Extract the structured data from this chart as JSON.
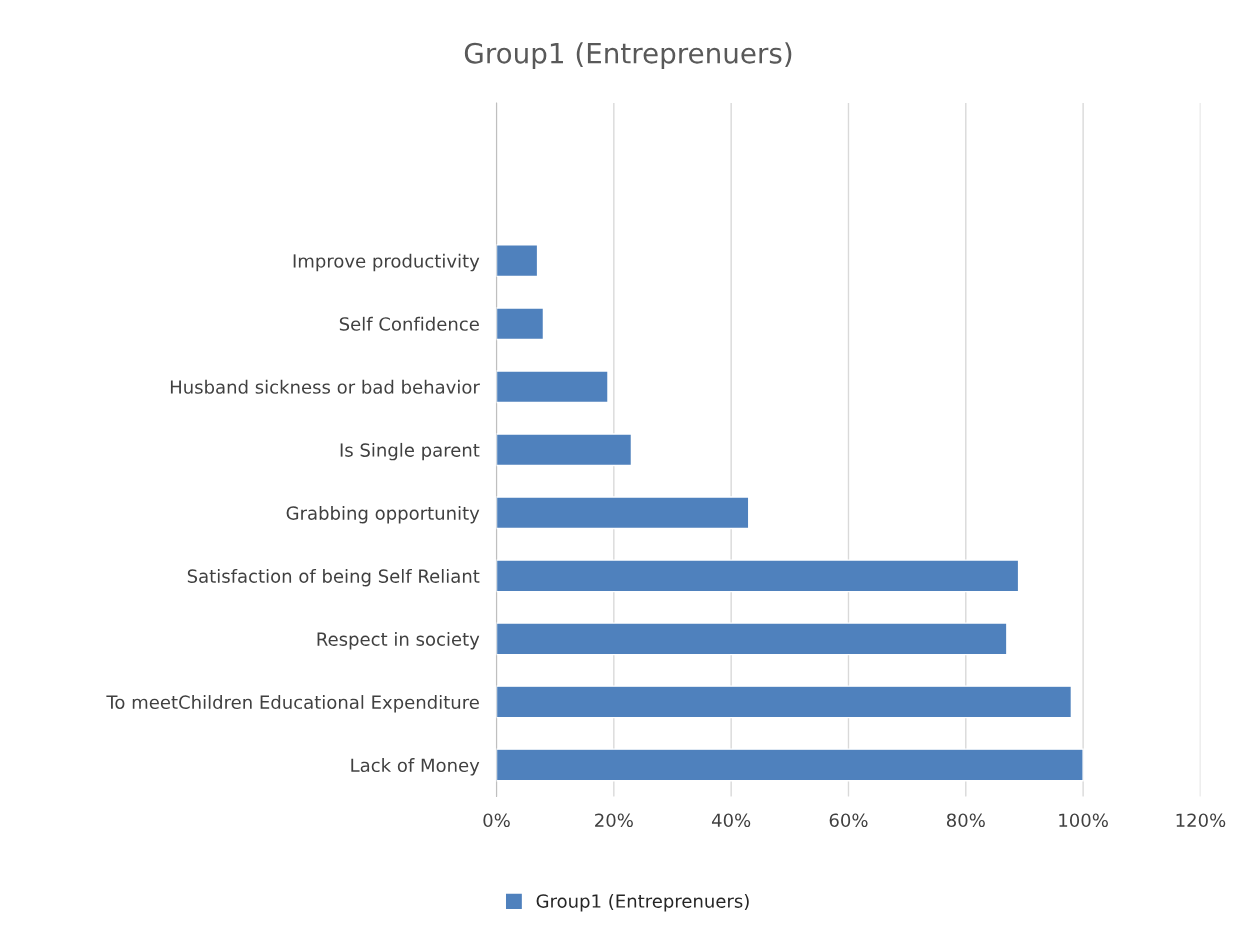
{
  "chart_data": {
    "type": "bar",
    "orientation": "horizontal",
    "title": "Group1 (Entreprenuers)",
    "categories": [
      null,
      null,
      "Improve productivity",
      "Self Confidence",
      "Husband sickness or bad behavior",
      "Is Single parent",
      "Grabbing opportunity",
      "Satisfaction of being Self Reliant",
      "Respect in society",
      "To meetChildren Educational Expenditure",
      "Lack of Money"
    ],
    "series": [
      {
        "name": "Group1 (Entreprenuers)",
        "color": "#4f81bd",
        "values": [
          null,
          null,
          7,
          8,
          19,
          23,
          43,
          89,
          87,
          98,
          100
        ]
      }
    ],
    "xlim": [
      0,
      120
    ],
    "xticks": [
      {
        "value": 0,
        "label": "0%"
      },
      {
        "value": 20,
        "label": "20%"
      },
      {
        "value": 40,
        "label": "40%"
      },
      {
        "value": 60,
        "label": "60%"
      },
      {
        "value": 80,
        "label": "80%"
      },
      {
        "value": 100,
        "label": "100%"
      },
      {
        "value": 120,
        "label": "120%"
      }
    ],
    "grid": "x",
    "legend": "bottom"
  }
}
